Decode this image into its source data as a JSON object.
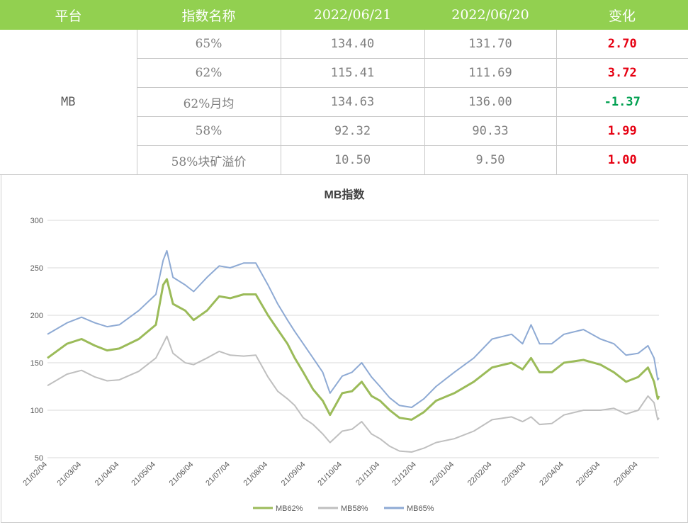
{
  "table": {
    "headers": [
      "平台",
      "指数名称",
      "2022/06/21",
      "2022/06/20",
      "变化"
    ],
    "platform": "MB",
    "rows": [
      {
        "name": "65%",
        "d1": "134.40",
        "d2": "131.70",
        "change": "2.70",
        "dir": "up"
      },
      {
        "name": "62%",
        "d1": "115.41",
        "d2": "111.69",
        "change": "3.72",
        "dir": "up"
      },
      {
        "name": "62%月均",
        "d1": "134.63",
        "d2": "136.00",
        "change": "-1.37",
        "dir": "down"
      },
      {
        "name": "58%",
        "d1": "92.32",
        "d2": "90.33",
        "change": "1.99",
        "dir": "up"
      },
      {
        "name": "58%块矿溢价",
        "d1": "10.50",
        "d2": "9.50",
        "change": "1.00",
        "dir": "up"
      }
    ]
  },
  "colors": {
    "header_bg": "#92d050",
    "up": "#e60012",
    "down": "#00a050"
  },
  "chart_data": {
    "type": "line",
    "title": "MB指数",
    "ylim": [
      50,
      300
    ],
    "yticks": [
      50,
      100,
      150,
      200,
      250,
      300
    ],
    "xticks": [
      "21/02/04",
      "21/03/04",
      "21/04/04",
      "21/05/04",
      "21/06/04",
      "21/07/04",
      "21/08/04",
      "21/09/04",
      "21/10/04",
      "21/11/04",
      "21/12/04",
      "22/01/04",
      "22/02/04",
      "22/03/04",
      "22/04/04",
      "22/05/04",
      "22/06/04"
    ],
    "xrange": [
      "2021-02-04",
      "2022-06-21"
    ],
    "grid": "horizontal",
    "legend_position": "bottom",
    "series": [
      {
        "name": "MB62%",
        "color": "#9bbb59",
        "width": 3,
        "points": [
          [
            "2021-02-04",
            155
          ],
          [
            "2021-02-20",
            170
          ],
          [
            "2021-03-04",
            175
          ],
          [
            "2021-03-15",
            168
          ],
          [
            "2021-03-25",
            163
          ],
          [
            "2021-04-04",
            165
          ],
          [
            "2021-04-20",
            175
          ],
          [
            "2021-05-04",
            190
          ],
          [
            "2021-05-10",
            232
          ],
          [
            "2021-05-13",
            238
          ],
          [
            "2021-05-18",
            212
          ],
          [
            "2021-05-28",
            205
          ],
          [
            "2021-06-04",
            195
          ],
          [
            "2021-06-15",
            205
          ],
          [
            "2021-06-25",
            220
          ],
          [
            "2021-07-04",
            218
          ],
          [
            "2021-07-15",
            222
          ],
          [
            "2021-07-25",
            222
          ],
          [
            "2021-08-04",
            200
          ],
          [
            "2021-08-12",
            185
          ],
          [
            "2021-08-20",
            170
          ],
          [
            "2021-08-26",
            155
          ],
          [
            "2021-09-02",
            140
          ],
          [
            "2021-09-10",
            122
          ],
          [
            "2021-09-18",
            110
          ],
          [
            "2021-09-24",
            95
          ],
          [
            "2021-10-04",
            118
          ],
          [
            "2021-10-12",
            120
          ],
          [
            "2021-10-20",
            130
          ],
          [
            "2021-10-28",
            115
          ],
          [
            "2021-11-04",
            110
          ],
          [
            "2021-11-12",
            100
          ],
          [
            "2021-11-20",
            92
          ],
          [
            "2021-11-30",
            90
          ],
          [
            "2021-12-10",
            98
          ],
          [
            "2021-12-20",
            110
          ],
          [
            "2022-01-04",
            118
          ],
          [
            "2022-01-20",
            130
          ],
          [
            "2022-02-04",
            145
          ],
          [
            "2022-02-20",
            150
          ],
          [
            "2022-03-01",
            143
          ],
          [
            "2022-03-08",
            155
          ],
          [
            "2022-03-15",
            140
          ],
          [
            "2022-03-25",
            140
          ],
          [
            "2022-04-04",
            150
          ],
          [
            "2022-04-20",
            153
          ],
          [
            "2022-05-04",
            148
          ],
          [
            "2022-05-15",
            140
          ],
          [
            "2022-05-25",
            130
          ],
          [
            "2022-06-04",
            135
          ],
          [
            "2022-06-12",
            145
          ],
          [
            "2022-06-17",
            130
          ],
          [
            "2022-06-20",
            112
          ],
          [
            "2022-06-21",
            115
          ]
        ]
      },
      {
        "name": "MB58%",
        "color": "#bfbfbf",
        "width": 2,
        "points": [
          [
            "2021-02-04",
            126
          ],
          [
            "2021-02-20",
            138
          ],
          [
            "2021-03-04",
            142
          ],
          [
            "2021-03-15",
            135
          ],
          [
            "2021-03-25",
            131
          ],
          [
            "2021-04-04",
            132
          ],
          [
            "2021-04-20",
            141
          ],
          [
            "2021-05-04",
            155
          ],
          [
            "2021-05-10",
            170
          ],
          [
            "2021-05-13",
            178
          ],
          [
            "2021-05-18",
            160
          ],
          [
            "2021-05-28",
            150
          ],
          [
            "2021-06-04",
            148
          ],
          [
            "2021-06-15",
            155
          ],
          [
            "2021-06-25",
            162
          ],
          [
            "2021-07-04",
            158
          ],
          [
            "2021-07-15",
            157
          ],
          [
            "2021-07-25",
            158
          ],
          [
            "2021-08-04",
            135
          ],
          [
            "2021-08-12",
            120
          ],
          [
            "2021-08-20",
            112
          ],
          [
            "2021-08-26",
            105
          ],
          [
            "2021-09-02",
            92
          ],
          [
            "2021-09-10",
            85
          ],
          [
            "2021-09-18",
            75
          ],
          [
            "2021-09-24",
            66
          ],
          [
            "2021-10-04",
            78
          ],
          [
            "2021-10-12",
            80
          ],
          [
            "2021-10-20",
            88
          ],
          [
            "2021-10-28",
            75
          ],
          [
            "2021-11-04",
            70
          ],
          [
            "2021-11-12",
            62
          ],
          [
            "2021-11-20",
            57
          ],
          [
            "2021-11-30",
            56
          ],
          [
            "2021-12-10",
            60
          ],
          [
            "2021-12-20",
            66
          ],
          [
            "2022-01-04",
            70
          ],
          [
            "2022-01-20",
            78
          ],
          [
            "2022-02-04",
            90
          ],
          [
            "2022-02-20",
            93
          ],
          [
            "2022-03-01",
            88
          ],
          [
            "2022-03-08",
            93
          ],
          [
            "2022-03-15",
            85
          ],
          [
            "2022-03-25",
            86
          ],
          [
            "2022-04-04",
            95
          ],
          [
            "2022-04-20",
            100
          ],
          [
            "2022-05-04",
            100
          ],
          [
            "2022-05-15",
            102
          ],
          [
            "2022-05-25",
            96
          ],
          [
            "2022-06-04",
            100
          ],
          [
            "2022-06-12",
            115
          ],
          [
            "2022-06-17",
            108
          ],
          [
            "2022-06-20",
            90
          ],
          [
            "2022-06-21",
            92
          ]
        ]
      },
      {
        "name": "MB65%",
        "color": "#8eaad4",
        "width": 2,
        "points": [
          [
            "2021-02-04",
            180
          ],
          [
            "2021-02-20",
            192
          ],
          [
            "2021-03-04",
            198
          ],
          [
            "2021-03-15",
            192
          ],
          [
            "2021-03-25",
            188
          ],
          [
            "2021-04-04",
            190
          ],
          [
            "2021-04-20",
            205
          ],
          [
            "2021-05-04",
            222
          ],
          [
            "2021-05-10",
            258
          ],
          [
            "2021-05-13",
            268
          ],
          [
            "2021-05-18",
            240
          ],
          [
            "2021-05-28",
            232
          ],
          [
            "2021-06-04",
            225
          ],
          [
            "2021-06-15",
            240
          ],
          [
            "2021-06-25",
            252
          ],
          [
            "2021-07-04",
            250
          ],
          [
            "2021-07-15",
            255
          ],
          [
            "2021-07-25",
            255
          ],
          [
            "2021-08-04",
            232
          ],
          [
            "2021-08-12",
            212
          ],
          [
            "2021-08-20",
            195
          ],
          [
            "2021-08-26",
            183
          ],
          [
            "2021-09-02",
            170
          ],
          [
            "2021-09-10",
            155
          ],
          [
            "2021-09-18",
            140
          ],
          [
            "2021-09-24",
            118
          ],
          [
            "2021-10-04",
            136
          ],
          [
            "2021-10-12",
            140
          ],
          [
            "2021-10-20",
            150
          ],
          [
            "2021-10-28",
            135
          ],
          [
            "2021-11-04",
            125
          ],
          [
            "2021-11-12",
            113
          ],
          [
            "2021-11-20",
            105
          ],
          [
            "2021-11-30",
            103
          ],
          [
            "2021-12-10",
            112
          ],
          [
            "2021-12-20",
            125
          ],
          [
            "2022-01-04",
            140
          ],
          [
            "2022-01-20",
            155
          ],
          [
            "2022-02-04",
            175
          ],
          [
            "2022-02-20",
            180
          ],
          [
            "2022-03-01",
            170
          ],
          [
            "2022-03-08",
            190
          ],
          [
            "2022-03-15",
            170
          ],
          [
            "2022-03-25",
            170
          ],
          [
            "2022-04-04",
            180
          ],
          [
            "2022-04-20",
            185
          ],
          [
            "2022-05-04",
            175
          ],
          [
            "2022-05-15",
            170
          ],
          [
            "2022-05-25",
            158
          ],
          [
            "2022-06-04",
            160
          ],
          [
            "2022-06-12",
            168
          ],
          [
            "2022-06-17",
            155
          ],
          [
            "2022-06-20",
            132
          ],
          [
            "2022-06-21",
            134
          ]
        ]
      }
    ]
  }
}
